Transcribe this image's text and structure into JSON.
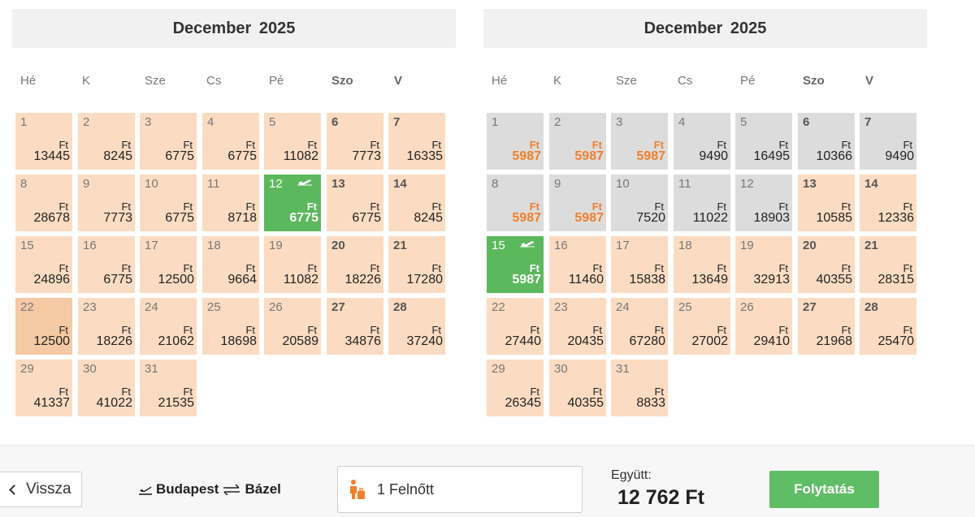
{
  "calendars": [
    {
      "title": "December  2025",
      "weekdays": [
        {
          "label": "Hé",
          "bold": false
        },
        {
          "label": "K",
          "bold": false
        },
        {
          "label": "Sze",
          "bold": false
        },
        {
          "label": "Cs",
          "bold": false
        },
        {
          "label": "Pé",
          "bold": false
        },
        {
          "label": "Szo",
          "bold": true
        },
        {
          "label": "V",
          "bold": true
        }
      ],
      "start_weekday": 0,
      "days": [
        {
          "day": "1",
          "currency": "Ft",
          "price": "13445",
          "state": "available"
        },
        {
          "day": "2",
          "currency": "Ft",
          "price": "8245",
          "state": "available"
        },
        {
          "day": "3",
          "currency": "Ft",
          "price": "6775",
          "state": "available"
        },
        {
          "day": "4",
          "currency": "Ft",
          "price": "6775",
          "state": "available"
        },
        {
          "day": "5",
          "currency": "Ft",
          "price": "11082",
          "state": "available"
        },
        {
          "day": "6",
          "currency": "Ft",
          "price": "7773",
          "state": "available"
        },
        {
          "day": "7",
          "currency": "Ft",
          "price": "16335",
          "state": "available"
        },
        {
          "day": "8",
          "currency": "Ft",
          "price": "28678",
          "state": "available"
        },
        {
          "day": "9",
          "currency": "Ft",
          "price": "7773",
          "state": "available"
        },
        {
          "day": "10",
          "currency": "Ft",
          "price": "6775",
          "state": "available"
        },
        {
          "day": "11",
          "currency": "Ft",
          "price": "8718",
          "state": "available"
        },
        {
          "day": "12",
          "currency": "Ft",
          "price": "6775",
          "state": "selected",
          "icon": "plane-icon"
        },
        {
          "day": "13",
          "currency": "Ft",
          "price": "6775",
          "state": "available"
        },
        {
          "day": "14",
          "currency": "Ft",
          "price": "8245",
          "state": "available"
        },
        {
          "day": "15",
          "currency": "Ft",
          "price": "24896",
          "state": "available"
        },
        {
          "day": "16",
          "currency": "Ft",
          "price": "6775",
          "state": "available"
        },
        {
          "day": "17",
          "currency": "Ft",
          "price": "12500",
          "state": "available"
        },
        {
          "day": "18",
          "currency": "Ft",
          "price": "9664",
          "state": "available"
        },
        {
          "day": "19",
          "currency": "Ft",
          "price": "11082",
          "state": "available"
        },
        {
          "day": "20",
          "currency": "Ft",
          "price": "18226",
          "state": "available"
        },
        {
          "day": "21",
          "currency": "Ft",
          "price": "17280",
          "state": "available"
        },
        {
          "day": "22",
          "currency": "Ft",
          "price": "12500",
          "state": "hover"
        },
        {
          "day": "23",
          "currency": "Ft",
          "price": "18226",
          "state": "available"
        },
        {
          "day": "24",
          "currency": "Ft",
          "price": "21062",
          "state": "available"
        },
        {
          "day": "25",
          "currency": "Ft",
          "price": "18698",
          "state": "available"
        },
        {
          "day": "26",
          "currency": "Ft",
          "price": "20589",
          "state": "available"
        },
        {
          "day": "27",
          "currency": "Ft",
          "price": "34876",
          "state": "available"
        },
        {
          "day": "28",
          "currency": "Ft",
          "price": "37240",
          "state": "available"
        },
        {
          "day": "29",
          "currency": "Ft",
          "price": "41337",
          "state": "available"
        },
        {
          "day": "30",
          "currency": "Ft",
          "price": "41022",
          "state": "available"
        },
        {
          "day": "31",
          "currency": "Ft",
          "price": "21535",
          "state": "available"
        }
      ]
    },
    {
      "title": "December  2025",
      "weekdays": [
        {
          "label": "Hé",
          "bold": false
        },
        {
          "label": "K",
          "bold": false
        },
        {
          "label": "Sze",
          "bold": false
        },
        {
          "label": "Cs",
          "bold": false
        },
        {
          "label": "Pé",
          "bold": false
        },
        {
          "label": "Szo",
          "bold": true
        },
        {
          "label": "V",
          "bold": true
        }
      ],
      "start_weekday": 0,
      "days": [
        {
          "day": "1",
          "currency": "Ft",
          "price": "5987",
          "state": "disabled-orange"
        },
        {
          "day": "2",
          "currency": "Ft",
          "price": "5987",
          "state": "disabled-orange"
        },
        {
          "day": "3",
          "currency": "Ft",
          "price": "5987",
          "state": "disabled-orange"
        },
        {
          "day": "4",
          "currency": "Ft",
          "price": "9490",
          "state": "disabled"
        },
        {
          "day": "5",
          "currency": "Ft",
          "price": "16495",
          "state": "disabled"
        },
        {
          "day": "6",
          "currency": "Ft",
          "price": "10366",
          "state": "disabled"
        },
        {
          "day": "7",
          "currency": "Ft",
          "price": "9490",
          "state": "disabled"
        },
        {
          "day": "8",
          "currency": "Ft",
          "price": "5987",
          "state": "disabled-orange"
        },
        {
          "day": "9",
          "currency": "Ft",
          "price": "5987",
          "state": "disabled-orange"
        },
        {
          "day": "10",
          "currency": "Ft",
          "price": "7520",
          "state": "disabled"
        },
        {
          "day": "11",
          "currency": "Ft",
          "price": "11022",
          "state": "disabled"
        },
        {
          "day": "12",
          "currency": "Ft",
          "price": "18903",
          "state": "disabled"
        },
        {
          "day": "13",
          "currency": "Ft",
          "price": "10585",
          "state": "available"
        },
        {
          "day": "14",
          "currency": "Ft",
          "price": "12336",
          "state": "available"
        },
        {
          "day": "15",
          "currency": "Ft",
          "price": "5987",
          "state": "selected",
          "icon": "plane-landing-icon"
        },
        {
          "day": "16",
          "currency": "Ft",
          "price": "11460",
          "state": "available"
        },
        {
          "day": "17",
          "currency": "Ft",
          "price": "15838",
          "state": "available"
        },
        {
          "day": "18",
          "currency": "Ft",
          "price": "13649",
          "state": "available"
        },
        {
          "day": "19",
          "currency": "Ft",
          "price": "32913",
          "state": "available"
        },
        {
          "day": "20",
          "currency": "Ft",
          "price": "40355",
          "state": "available"
        },
        {
          "day": "21",
          "currency": "Ft",
          "price": "28315",
          "state": "available"
        },
        {
          "day": "22",
          "currency": "Ft",
          "price": "27440",
          "state": "available"
        },
        {
          "day": "23",
          "currency": "Ft",
          "price": "20435",
          "state": "available"
        },
        {
          "day": "24",
          "currency": "Ft",
          "price": "67280",
          "state": "available"
        },
        {
          "day": "25",
          "currency": "Ft",
          "price": "27002",
          "state": "available"
        },
        {
          "day": "26",
          "currency": "Ft",
          "price": "29410",
          "state": "available"
        },
        {
          "day": "27",
          "currency": "Ft",
          "price": "21968",
          "state": "available"
        },
        {
          "day": "28",
          "currency": "Ft",
          "price": "25470",
          "state": "available"
        },
        {
          "day": "29",
          "currency": "Ft",
          "price": "26345",
          "state": "available"
        },
        {
          "day": "30",
          "currency": "Ft",
          "price": "40355",
          "state": "available"
        },
        {
          "day": "31",
          "currency": "Ft",
          "price": "8833",
          "state": "available"
        }
      ]
    }
  ],
  "footer": {
    "back_label": "Vissza",
    "origin": "Budapest",
    "destination": "Bázel",
    "passengers": "1 Felnőtt",
    "total_label": "Együtt:",
    "total_value": "12 762 Ft",
    "continue_label": "Folytatás"
  },
  "colors": {
    "available": "#fbdcc2",
    "hover": "#f5c9a4",
    "disabled": "#dcdcdc",
    "selected": "#5cb85c",
    "cheap_price": "#f07f2c",
    "continue_button": "#5fbd66",
    "passenger_icon": "#f07f2c"
  }
}
